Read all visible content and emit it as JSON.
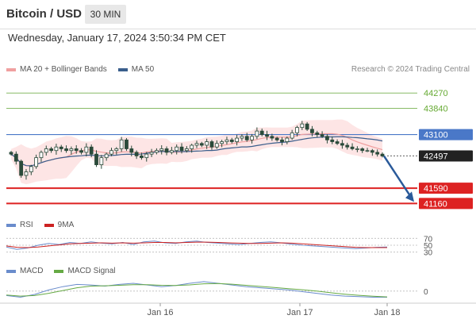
{
  "header": {
    "title": "Bitcoin / USD",
    "timeframe": "30 MIN",
    "datetime": "Wednesday, January 17, 2024 3:50:34 PM CET"
  },
  "legends": {
    "main": [
      {
        "label": "MA 20 + Bollinger Bands",
        "color": "#f0a0a0"
      },
      {
        "label": "MA 50",
        "color": "#3a5e8c"
      }
    ],
    "rsi": [
      {
        "label": "RSI",
        "color": "#6a8ccc"
      },
      {
        "label": "9MA",
        "color": "#cc2222"
      }
    ],
    "macd": [
      {
        "label": "MACD",
        "color": "#6a8ccc"
      },
      {
        "label": "MACD Signal",
        "color": "#66aa44"
      }
    ]
  },
  "copyright": "Research © 2024 Trading Central",
  "colors": {
    "green_level": "#88bb66",
    "blue_level": "#4a78c8",
    "red_level": "#dd2222",
    "candle": "#2a4a3a",
    "bollinger_fill": "#fde2e2",
    "arrow": "#2a5a9a"
  },
  "chart_data": [
    {
      "type": "candlestick",
      "title": "Bitcoin / USD",
      "ylim": [
        40900,
        44700
      ],
      "x": [
        "Jan 16",
        "Jan 17",
        "Jan 18"
      ],
      "levels": [
        {
          "value": 44270,
          "label": "44270",
          "style": "green-line"
        },
        {
          "value": 43840,
          "label": "43840",
          "style": "green-line"
        },
        {
          "value": 43100,
          "label": "43100",
          "style": "blue-box"
        },
        {
          "value": 42497,
          "label": "42497",
          "style": "current-price-dotted"
        },
        {
          "value": 41590,
          "label": "41590",
          "style": "red-box"
        },
        {
          "value": 41160,
          "label": "41160",
          "style": "red-box"
        }
      ],
      "close_series": [
        42550,
        42350,
        41950,
        42050,
        42200,
        42450,
        42600,
        42700,
        42650,
        42750,
        42700,
        42650,
        42700,
        42650,
        42600,
        42750,
        42550,
        42250,
        42450,
        42550,
        42650,
        42700,
        42950,
        42700,
        42600,
        42500,
        42450,
        42550,
        42600,
        42650,
        42700,
        42600,
        42650,
        42750,
        42650,
        42700,
        42800,
        42850,
        42800,
        42900,
        42750,
        42850,
        42900,
        42950,
        42900,
        43000,
        43050,
        42950,
        43050,
        43200,
        43100,
        43050,
        43000,
        42950,
        42900,
        43000,
        43150,
        43300,
        43400,
        43250,
        43150,
        43100,
        43050,
        42950,
        42900,
        42850,
        42800,
        42750,
        42700,
        42700,
        42650,
        42650,
        42600,
        42550,
        42497
      ],
      "forecast": {
        "from": 42497,
        "to": 41160
      }
    },
    {
      "type": "line",
      "title": "RSI",
      "levels": [
        70,
        50,
        30
      ],
      "series": [
        {
          "name": "RSI",
          "values": [
            45,
            38,
            42,
            50,
            55,
            52,
            58,
            55,
            60,
            56,
            54,
            58,
            52,
            60,
            62,
            57,
            55,
            60,
            62,
            58,
            56,
            54,
            52,
            55,
            58,
            60,
            57,
            53,
            50,
            48,
            46,
            44,
            42,
            40,
            42,
            44,
            45
          ]
        },
        {
          "name": "9MA",
          "values": [
            48,
            44,
            43,
            45,
            48,
            51,
            54,
            55,
            56,
            57,
            56,
            57,
            56,
            57,
            58,
            58,
            57,
            58,
            59,
            59,
            58,
            57,
            56,
            55,
            55,
            56,
            57,
            56,
            54,
            52,
            50,
            48,
            46,
            44,
            43,
            43,
            43
          ]
        }
      ]
    },
    {
      "type": "line",
      "title": "MACD",
      "levels": [
        0
      ],
      "series": [
        {
          "name": "MACD",
          "values": [
            -40,
            -55,
            -30,
            10,
            40,
            60,
            55,
            45,
            60,
            70,
            55,
            40,
            50,
            70,
            85,
            70,
            55,
            40,
            30,
            20,
            10,
            -5,
            -20,
            -35,
            -45,
            -50,
            -55,
            -55
          ]
        },
        {
          "name": "MACD Signal",
          "values": [
            -35,
            -45,
            -40,
            -20,
            5,
            30,
            45,
            48,
            52,
            58,
            58,
            52,
            50,
            56,
            66,
            68,
            62,
            52,
            42,
            32,
            22,
            12,
            0,
            -15,
            -28,
            -38,
            -46,
            -52
          ]
        }
      ]
    }
  ]
}
